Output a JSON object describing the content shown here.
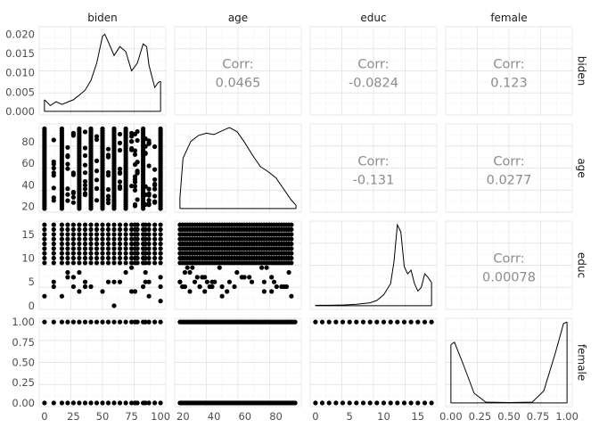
{
  "chart_data": {
    "type": "scatter",
    "variables": [
      "biden",
      "age",
      "educ",
      "female"
    ],
    "corr_label": "Corr:",
    "correlations": {
      "biden_age": "0.0465",
      "biden_educ": "-0.0824",
      "biden_female": "0.123",
      "age_educ": "-0.131",
      "age_female": "0.0277",
      "educ_female": "0.00078"
    },
    "axes": {
      "biden": {
        "range": [
          0,
          100
        ],
        "ticks": [
          "0",
          "25",
          "50",
          "75",
          "100"
        ],
        "tick_values": [
          0,
          25,
          50,
          75,
          100
        ]
      },
      "age": {
        "range": [
          18,
          93
        ],
        "ticks": [
          "20",
          "40",
          "60",
          "80"
        ],
        "tick_values": [
          20,
          40,
          60,
          80
        ]
      },
      "educ": {
        "range": [
          0,
          17
        ],
        "ticks": [
          "0",
          "5",
          "10",
          "15"
        ],
        "tick_values": [
          0,
          5,
          10,
          15
        ]
      },
      "female": {
        "range": [
          0,
          1
        ],
        "ticks": [
          "0.00",
          "0.25",
          "0.50",
          "0.75",
          "1.00"
        ],
        "tick_values": [
          0,
          0.25,
          0.5,
          0.75,
          1
        ]
      },
      "density_y": {
        "range": [
          0,
          0.021
        ],
        "ticks": [
          "0.000",
          "0.005",
          "0.010",
          "0.015",
          "0.020"
        ],
        "tick_values": [
          0,
          0.005,
          0.01,
          0.015,
          0.02
        ]
      }
    },
    "biden_values": [
      0,
      8,
      15,
      20,
      25,
      30,
      35,
      40,
      45,
      50,
      55,
      60,
      65,
      70,
      75,
      78,
      80,
      85,
      87,
      90,
      95,
      100
    ],
    "densities": {
      "biden": {
        "x": [
          0,
          5,
          10,
          15,
          20,
          25,
          30,
          35,
          40,
          45,
          50,
          52,
          55,
          60,
          65,
          70,
          75,
          80,
          85,
          88,
          90,
          95,
          98,
          100
        ],
        "y": [
          0.003,
          0.0015,
          0.0025,
          0.0018,
          0.0024,
          0.003,
          0.0042,
          0.0055,
          0.008,
          0.0125,
          0.0195,
          0.02,
          0.018,
          0.0145,
          0.0168,
          0.0155,
          0.0105,
          0.0125,
          0.0175,
          0.0168,
          0.012,
          0.0062,
          0.0075,
          0.0078
        ]
      },
      "age": {
        "x": [
          18,
          20,
          25,
          30,
          35,
          40,
          45,
          50,
          55,
          60,
          65,
          70,
          75,
          80,
          85,
          90,
          93
        ],
        "y": [
          0.004,
          0.018,
          0.024,
          0.0262,
          0.027,
          0.0265,
          0.0278,
          0.029,
          0.0275,
          0.0235,
          0.019,
          0.015,
          0.0132,
          0.011,
          0.007,
          0.003,
          0.0012
        ]
      },
      "educ": {
        "x": [
          0,
          2,
          4,
          6,
          8,
          9,
          10,
          11,
          11.5,
          12,
          12.5,
          13,
          13.5,
          14,
          14.5,
          15,
          15.5,
          16,
          16.5,
          17
        ],
        "y": [
          0.002,
          0.002,
          0.003,
          0.006,
          0.012,
          0.022,
          0.045,
          0.09,
          0.18,
          0.33,
          0.3,
          0.16,
          0.13,
          0.145,
          0.09,
          0.06,
          0.075,
          0.13,
          0.115,
          0.095
        ]
      },
      "female": {
        "x": [
          0,
          0.03,
          0.1,
          0.2,
          0.3,
          0.5,
          0.7,
          0.8,
          0.9,
          0.97,
          1
        ],
        "y": [
          0.72,
          0.75,
          0.5,
          0.12,
          0.01,
          0.005,
          0.01,
          0.15,
          0.62,
          0.98,
          1.0
        ]
      }
    }
  }
}
